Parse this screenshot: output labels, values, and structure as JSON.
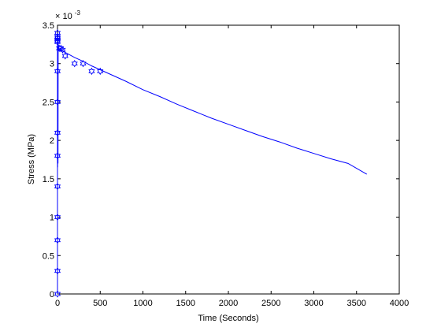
{
  "chart_data": {
    "type": "line",
    "xlabel": "Time (Seconds)",
    "ylabel": "Stress (MPa)",
    "xlim": [
      0,
      4000
    ],
    "ylim": [
      0,
      3.5
    ],
    "x_ticks": [
      0,
      500,
      1000,
      1500,
      2000,
      2500,
      3000,
      3500,
      4000
    ],
    "y_ticks": [
      0,
      0.5,
      1,
      1.5,
      2,
      2.5,
      3,
      3.5
    ],
    "x_tick_labels": [
      "0",
      "500",
      "1000",
      "1500",
      "2000",
      "2500",
      "3000",
      "3500",
      "4000"
    ],
    "y_tick_labels": [
      "0",
      "0.5",
      "1",
      "1.5",
      "2",
      "2.5",
      "3",
      "3.5"
    ],
    "y_multiplier": {
      "base": "× 10",
      "exponent": "-3"
    },
    "grid": false,
    "colors": {
      "series": "#0000ff",
      "axes": "#000000"
    },
    "series": [
      {
        "style": "line",
        "x": [
          0,
          0,
          2,
          4,
          6,
          8,
          10,
          20,
          50,
          100,
          200,
          300,
          400,
          500,
          600,
          800,
          1000,
          1200,
          1400,
          1600,
          1800,
          2000,
          2200,
          2400,
          2600,
          2800,
          3000,
          3200,
          3400,
          3620
        ],
        "y": [
          0,
          3.3,
          1.65,
          3.4,
          1.7,
          3.3,
          3.2,
          3.19,
          3.17,
          3.14,
          3.08,
          3.03,
          2.97,
          2.92,
          2.87,
          2.77,
          2.66,
          2.57,
          2.47,
          2.38,
          2.29,
          2.21,
          2.13,
          2.05,
          1.98,
          1.9,
          1.83,
          1.76,
          1.7,
          1.56
        ]
      },
      {
        "style": "markers",
        "marker": "hexagram",
        "x": [
          0,
          0,
          0,
          0,
          0,
          0,
          0,
          0,
          0,
          0,
          0,
          0,
          0,
          2,
          20,
          40,
          60,
          90,
          200,
          300,
          400,
          500
        ],
        "y": [
          0,
          0.3,
          0.7,
          1.0,
          1.4,
          1.8,
          2.1,
          2.5,
          2.9,
          3.3,
          3.4,
          3.35,
          3.28,
          3.33,
          3.2,
          3.2,
          3.18,
          3.1,
          3.0,
          3.0,
          2.9,
          2.9
        ]
      }
    ]
  }
}
